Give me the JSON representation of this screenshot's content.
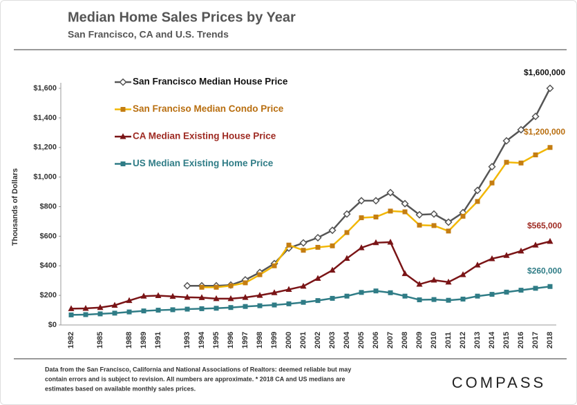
{
  "chart_data": {
    "type": "line",
    "title": "Median Home Sales Prices by Year",
    "subtitle": "San Francisco, CA and U.S. Trends",
    "y_label": "Thousands of Dollars",
    "categories": [
      "1982",
      null,
      "1985",
      null,
      "1988",
      "1989",
      "1991",
      null,
      "1993",
      "1994",
      "1995",
      "1996",
      "1997",
      "1998",
      "1999",
      "2000",
      "2001",
      "2002",
      "2003",
      "2004",
      "2005",
      "2006",
      "2007",
      "2008",
      "2009",
      "2010",
      "2011",
      "2012",
      "2013",
      "2014",
      "2015",
      "2016",
      "2017",
      "2018"
    ],
    "ylim": [
      0,
      1600
    ],
    "yticks": [
      {
        "value": 0,
        "label": "$0"
      },
      {
        "value": 200,
        "label": "$200"
      },
      {
        "value": 400,
        "label": "$400"
      },
      {
        "value": 600,
        "label": "$600"
      },
      {
        "value": 800,
        "label": "$800"
      },
      {
        "value": 1000,
        "label": "$1,000"
      },
      {
        "value": 1200,
        "label": "$1,200"
      },
      {
        "value": 1400,
        "label": "$1,400"
      },
      {
        "value": 1600,
        "label": "$1,600"
      }
    ],
    "grid": false,
    "series": [
      {
        "name": "San Francisco Median House Price",
        "color": "#555555",
        "marker": "diamond",
        "label_color": "#111111",
        "values": [
          null,
          null,
          null,
          null,
          null,
          null,
          null,
          null,
          265,
          265,
          265,
          270,
          305,
          355,
          415,
          520,
          555,
          590,
          640,
          750,
          840,
          840,
          895,
          820,
          745,
          750,
          695,
          760,
          910,
          1070,
          1245,
          1320,
          1410,
          1600
        ],
        "value_labels": [
          null,
          null,
          null,
          null,
          null,
          null,
          null,
          null,
          null,
          null,
          null,
          null,
          null,
          null,
          null,
          null,
          null,
          null,
          null,
          null,
          null,
          null,
          null,
          null,
          null,
          null,
          null,
          null,
          null,
          null,
          null,
          null,
          null,
          "$1,600,000"
        ]
      },
      {
        "name": "San Franciso Median Condo Price",
        "color": "#f2b705",
        "marker": "square",
        "marker_color": "#c47d12",
        "label_color": "#b86e0f",
        "values": [
          null,
          null,
          null,
          null,
          null,
          null,
          null,
          null,
          null,
          255,
          255,
          265,
          285,
          340,
          400,
          540,
          505,
          525,
          535,
          625,
          725,
          730,
          770,
          765,
          675,
          672,
          635,
          735,
          835,
          960,
          1100,
          1095,
          1150,
          1200
        ],
        "value_labels": [
          null,
          null,
          null,
          null,
          null,
          null,
          null,
          null,
          null,
          null,
          null,
          null,
          null,
          null,
          null,
          null,
          null,
          null,
          null,
          null,
          null,
          null,
          null,
          null,
          null,
          null,
          null,
          null,
          null,
          null,
          null,
          null,
          null,
          "$1,200,000"
        ]
      },
      {
        "name": "CA Median Existing House Price",
        "color": "#7a1416",
        "marker": "triangle",
        "label_color": "#9e2a22",
        "values": [
          110,
          112,
          118,
          133,
          165,
          195,
          198,
          193,
          187,
          185,
          178,
          178,
          186,
          200,
          218,
          240,
          262,
          315,
          370,
          450,
          522,
          556,
          560,
          347,
          275,
          303,
          290,
          340,
          405,
          448,
          470,
          500,
          540,
          565
        ],
        "value_labels": [
          null,
          null,
          null,
          null,
          null,
          null,
          null,
          null,
          null,
          null,
          null,
          null,
          null,
          null,
          null,
          null,
          null,
          null,
          null,
          null,
          null,
          null,
          null,
          null,
          null,
          null,
          null,
          null,
          null,
          null,
          null,
          null,
          null,
          "$565,000"
        ]
      },
      {
        "name": "US Median Existing Home Price",
        "color": "#2f7c86",
        "marker": "square",
        "label_color": "#2f7c86",
        "values": [
          68,
          70,
          75,
          80,
          88,
          95,
          100,
          103,
          107,
          110,
          113,
          118,
          125,
          130,
          135,
          143,
          153,
          165,
          180,
          195,
          220,
          230,
          218,
          195,
          170,
          172,
          167,
          175,
          195,
          207,
          222,
          235,
          248,
          260
        ],
        "value_labels": [
          null,
          null,
          null,
          null,
          null,
          null,
          null,
          null,
          null,
          null,
          null,
          null,
          null,
          null,
          null,
          null,
          null,
          null,
          null,
          null,
          null,
          null,
          null,
          null,
          null,
          null,
          null,
          null,
          null,
          null,
          null,
          null,
          null,
          "$260,000"
        ]
      }
    ],
    "footnote": [
      "Data from the San Francisco, California and National Associations of Realtors: deemed reliable but may",
      "contain errors and is subject to revision. All numbers are approximate. * 2018 CA and US medians are",
      "estimates based on available  monthly sales prices."
    ],
    "brand": "COMPASS"
  }
}
